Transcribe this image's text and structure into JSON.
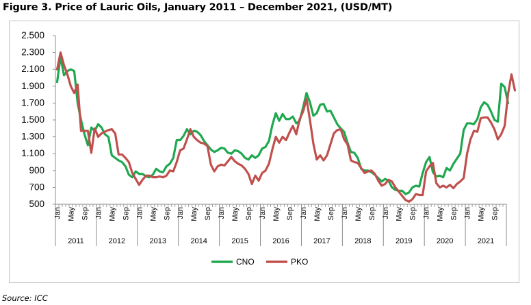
{
  "title": "Figure 3. Price of Lauric Oils, January 2011 – December 2021, (USD/MT)",
  "source": "Source: ICC",
  "chart_data": {
    "type": "line",
    "title": "Figure 3. Price of Lauric Oils, January 2011 – December 2021, (USD/MT)",
    "xlabel": "",
    "ylabel": "",
    "ylim": [
      500,
      2500
    ],
    "yticks": [
      "2.500",
      "2.300",
      "2.100",
      "1.900",
      "1.700",
      "1.500",
      "1.300",
      "1.100",
      "900",
      "700",
      "500"
    ],
    "month_labels": [
      "Jan",
      "May",
      "Sep"
    ],
    "years": [
      "2011",
      "2012",
      "2013",
      "2014",
      "2015",
      "2016",
      "2017",
      "2018",
      "2019",
      "2020",
      "2021"
    ],
    "legend_position": "bottom",
    "grid": false,
    "colors": {
      "CNO": "#1fa84f",
      "PKO": "#c0504d"
    },
    "series": [
      {
        "name": "CNO",
        "values": [
          1950,
          2250,
          2030,
          2080,
          2100,
          2080,
          1700,
          1500,
          1330,
          1200,
          1410,
          1370,
          1450,
          1410,
          1330,
          1300,
          1080,
          1050,
          1020,
          1000,
          950,
          850,
          820,
          890,
          860,
          860,
          830,
          820,
          850,
          920,
          890,
          880,
          950,
          980,
          1050,
          1260,
          1260,
          1310,
          1390,
          1330,
          1370,
          1360,
          1320,
          1250,
          1200,
          1150,
          1120,
          1140,
          1170,
          1160,
          1110,
          1100,
          1140,
          1130,
          1100,
          1050,
          1030,
          1080,
          1050,
          1080,
          1160,
          1180,
          1250,
          1440,
          1580,
          1490,
          1570,
          1510,
          1510,
          1540,
          1460,
          1490,
          1650,
          1820,
          1710,
          1550,
          1580,
          1680,
          1690,
          1600,
          1610,
          1530,
          1450,
          1400,
          1360,
          1230,
          1120,
          1110,
          1050,
          920,
          900,
          900,
          880,
          850,
          810,
          770,
          800,
          780,
          700,
          670,
          660,
          660,
          620,
          640,
          700,
          720,
          710,
          870,
          1000,
          1060,
          880,
          830,
          840,
          820,
          930,
          900,
          980,
          1040,
          1100,
          1380,
          1460,
          1460,
          1450,
          1510,
          1650,
          1710,
          1680,
          1600,
          1500,
          1480,
          1930,
          1890,
          1700
        ]
      },
      {
        "name": "PKO",
        "values": [
          2100,
          2300,
          2150,
          2040,
          1900,
          1820,
          1920,
          1370,
          1370,
          1370,
          1110,
          1400,
          1300,
          1340,
          1360,
          1380,
          1390,
          1340,
          1090,
          1090,
          1050,
          1000,
          870,
          800,
          730,
          790,
          840,
          840,
          820,
          820,
          830,
          820,
          840,
          900,
          890,
          1000,
          1140,
          1160,
          1270,
          1390,
          1300,
          1260,
          1230,
          1220,
          1190,
          970,
          890,
          950,
          970,
          960,
          1010,
          1060,
          1010,
          980,
          960,
          920,
          860,
          740,
          840,
          780,
          870,
          900,
          980,
          1150,
          1300,
          1230,
          1300,
          1260,
          1350,
          1430,
          1330,
          1510,
          1600,
          1750,
          1500,
          1220,
          1030,
          1080,
          1020,
          1080,
          1210,
          1340,
          1380,
          1390,
          1270,
          1210,
          1020,
          1000,
          990,
          930,
          870,
          890,
          900,
          860,
          780,
          720,
          740,
          790,
          770,
          700,
          650,
          600,
          550,
          530,
          560,
          620,
          610,
          610,
          890,
          950,
          990,
          750,
          700,
          720,
          700,
          730,
          690,
          740,
          770,
          810,
          1100,
          1270,
          1370,
          1360,
          1520,
          1530,
          1530,
          1470,
          1390,
          1270,
          1330,
          1430,
          1810,
          2040,
          1850
        ]
      }
    ]
  }
}
